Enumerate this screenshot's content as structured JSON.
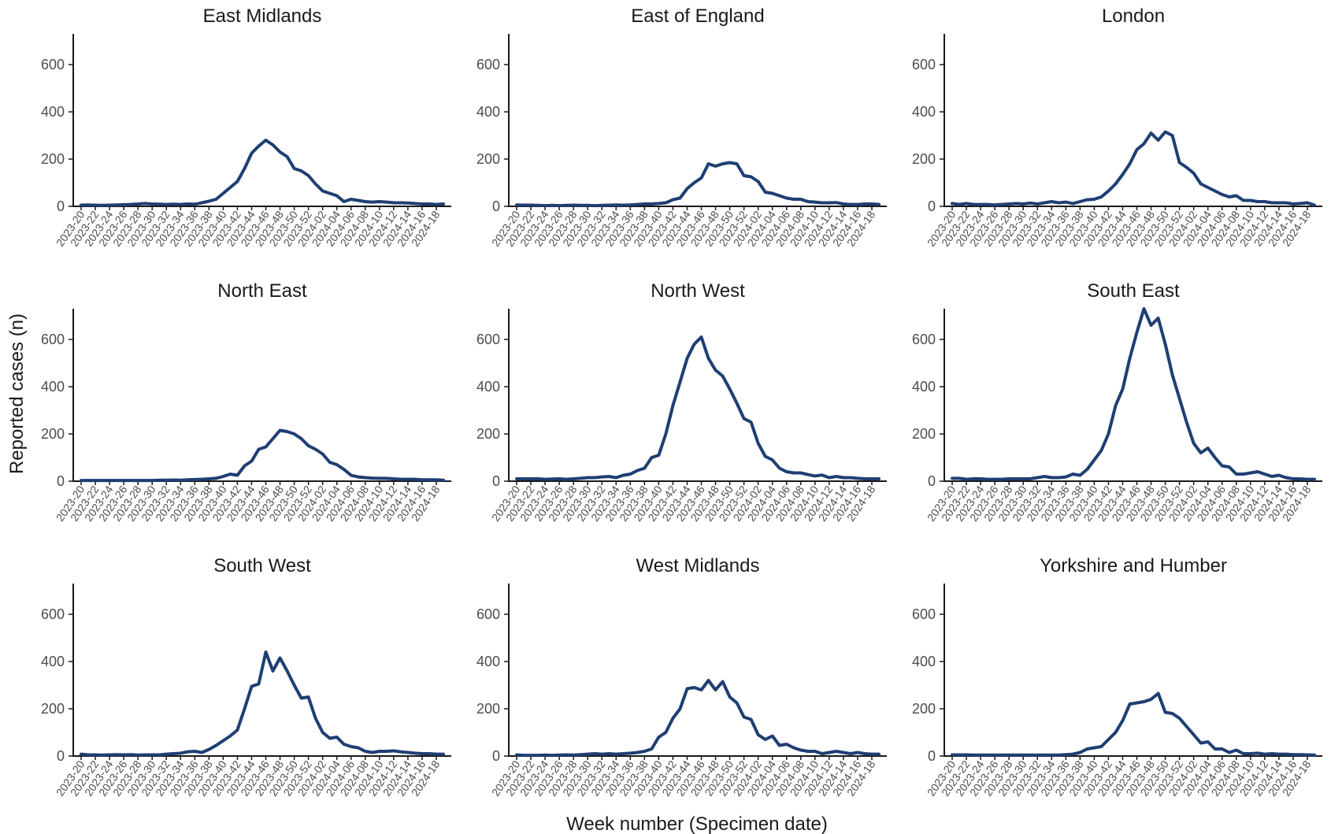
{
  "chart_data": {
    "type": "line",
    "layout": "small-multiples-3x3",
    "xlabel": "Week number (Specimen date)",
    "ylabel": "Reported cases (n)",
    "ylim": [
      0,
      730
    ],
    "yticks": [
      0,
      200,
      400,
      600
    ],
    "grid": false,
    "line_color": "#1f3f73",
    "x": [
      "2023-20",
      "2023-21",
      "2023-22",
      "2023-23",
      "2023-24",
      "2023-25",
      "2023-26",
      "2023-27",
      "2023-28",
      "2023-29",
      "2023-30",
      "2023-31",
      "2023-32",
      "2023-33",
      "2023-34",
      "2023-35",
      "2023-36",
      "2023-37",
      "2023-38",
      "2023-39",
      "2023-40",
      "2023-41",
      "2023-42",
      "2023-43",
      "2023-44",
      "2023-45",
      "2023-46",
      "2023-47",
      "2023-48",
      "2023-49",
      "2023-50",
      "2023-51",
      "2023-52",
      "2024-01",
      "2024-02",
      "2024-03",
      "2024-04",
      "2024-05",
      "2024-06",
      "2024-07",
      "2024-08",
      "2024-09",
      "2024-10",
      "2024-11",
      "2024-12",
      "2024-13",
      "2024-14",
      "2024-15",
      "2024-16",
      "2024-17",
      "2024-18",
      "2024-19"
    ],
    "x_tick_labels": [
      "2023-20",
      "2023-22",
      "2023-24",
      "2023-26",
      "2023-28",
      "2023-30",
      "2023-32",
      "2023-34",
      "2023-36",
      "2023-38",
      "2023-40",
      "2023-42",
      "2023-44",
      "2023-46",
      "2023-48",
      "2023-50",
      "2023-52",
      "2024-02",
      "2024-04",
      "2024-06",
      "2024-08",
      "2024-10",
      "2024-12",
      "2024-14",
      "2024-16",
      "2024-18"
    ],
    "panels": [
      {
        "title": "East Midlands",
        "values": [
          5,
          6,
          5,
          4,
          5,
          6,
          7,
          8,
          10,
          12,
          10,
          9,
          8,
          9,
          8,
          10,
          9,
          15,
          22,
          30,
          55,
          80,
          105,
          160,
          225,
          255,
          280,
          260,
          230,
          210,
          160,
          150,
          130,
          95,
          65,
          55,
          45,
          20,
          30,
          25,
          20,
          18,
          20,
          18,
          15,
          15,
          14,
          12,
          10,
          10,
          8,
          10
        ]
      },
      {
        "title": "East of England",
        "values": [
          6,
          5,
          5,
          4,
          3,
          4,
          3,
          4,
          5,
          4,
          4,
          3,
          4,
          5,
          6,
          5,
          6,
          8,
          10,
          10,
          12,
          15,
          28,
          35,
          75,
          100,
          120,
          180,
          170,
          180,
          185,
          180,
          130,
          125,
          105,
          60,
          55,
          45,
          35,
          30,
          30,
          20,
          18,
          15,
          15,
          16,
          10,
          8,
          8,
          10,
          10,
          8
        ]
      },
      {
        "title": "London",
        "values": [
          12,
          8,
          12,
          8,
          8,
          8,
          6,
          8,
          10,
          12,
          10,
          14,
          10,
          15,
          20,
          15,
          18,
          12,
          20,
          28,
          30,
          40,
          65,
          95,
          135,
          180,
          240,
          265,
          310,
          280,
          315,
          300,
          185,
          165,
          140,
          95,
          80,
          65,
          50,
          40,
          45,
          25,
          25,
          20,
          20,
          15,
          15,
          15,
          10,
          12,
          15,
          5
        ]
      },
      {
        "title": "North East",
        "values": [
          3,
          3,
          3,
          3,
          3,
          3,
          3,
          3,
          3,
          3,
          3,
          4,
          4,
          5,
          4,
          6,
          7,
          8,
          10,
          12,
          20,
          30,
          25,
          65,
          85,
          135,
          145,
          180,
          215,
          210,
          200,
          180,
          150,
          135,
          115,
          80,
          70,
          50,
          25,
          18,
          15,
          13,
          12,
          12,
          10,
          8,
          8,
          8,
          6,
          6,
          6,
          4
        ]
      },
      {
        "title": "North West",
        "values": [
          10,
          10,
          10,
          10,
          8,
          9,
          10,
          8,
          10,
          12,
          15,
          15,
          18,
          20,
          15,
          25,
          30,
          45,
          55,
          100,
          110,
          200,
          320,
          420,
          520,
          580,
          610,
          520,
          470,
          445,
          390,
          330,
          265,
          250,
          160,
          105,
          90,
          55,
          40,
          35,
          35,
          28,
          22,
          26,
          15,
          20,
          15,
          15,
          12,
          10,
          10,
          10
        ]
      },
      {
        "title": "South East",
        "values": [
          12,
          12,
          8,
          10,
          10,
          8,
          8,
          8,
          10,
          10,
          10,
          10,
          15,
          20,
          15,
          15,
          18,
          30,
          25,
          50,
          90,
          130,
          200,
          320,
          390,
          520,
          630,
          730,
          660,
          690,
          580,
          450,
          350,
          250,
          160,
          120,
          140,
          100,
          65,
          60,
          30,
          30,
          35,
          40,
          30,
          20,
          25,
          15,
          10,
          10,
          8,
          8
        ]
      },
      {
        "title": "South West",
        "values": [
          8,
          5,
          5,
          4,
          5,
          6,
          5,
          6,
          4,
          5,
          5,
          5,
          8,
          10,
          12,
          18,
          20,
          15,
          28,
          45,
          65,
          85,
          110,
          200,
          295,
          305,
          440,
          360,
          415,
          360,
          300,
          245,
          250,
          160,
          100,
          75,
          80,
          50,
          40,
          35,
          20,
          15,
          20,
          20,
          22,
          18,
          15,
          12,
          10,
          10,
          8,
          8
        ]
      },
      {
        "title": "West Midlands",
        "values": [
          5,
          3,
          3,
          3,
          4,
          3,
          4,
          5,
          4,
          6,
          8,
          10,
          8,
          10,
          8,
          10,
          12,
          15,
          20,
          30,
          80,
          100,
          160,
          200,
          285,
          290,
          280,
          320,
          280,
          315,
          250,
          225,
          165,
          155,
          90,
          70,
          85,
          45,
          50,
          35,
          25,
          20,
          20,
          10,
          15,
          20,
          15,
          10,
          15,
          10,
          8,
          8
        ]
      },
      {
        "title": "Yorkshire and Humber",
        "values": [
          5,
          5,
          5,
          4,
          4,
          4,
          4,
          4,
          4,
          4,
          4,
          4,
          4,
          4,
          4,
          4,
          6,
          8,
          15,
          30,
          35,
          40,
          70,
          100,
          150,
          220,
          225,
          230,
          240,
          265,
          185,
          180,
          160,
          125,
          90,
          55,
          60,
          30,
          30,
          15,
          25,
          10,
          10,
          12,
          8,
          10,
          8,
          8,
          6,
          6,
          5,
          4
        ]
      }
    ]
  }
}
